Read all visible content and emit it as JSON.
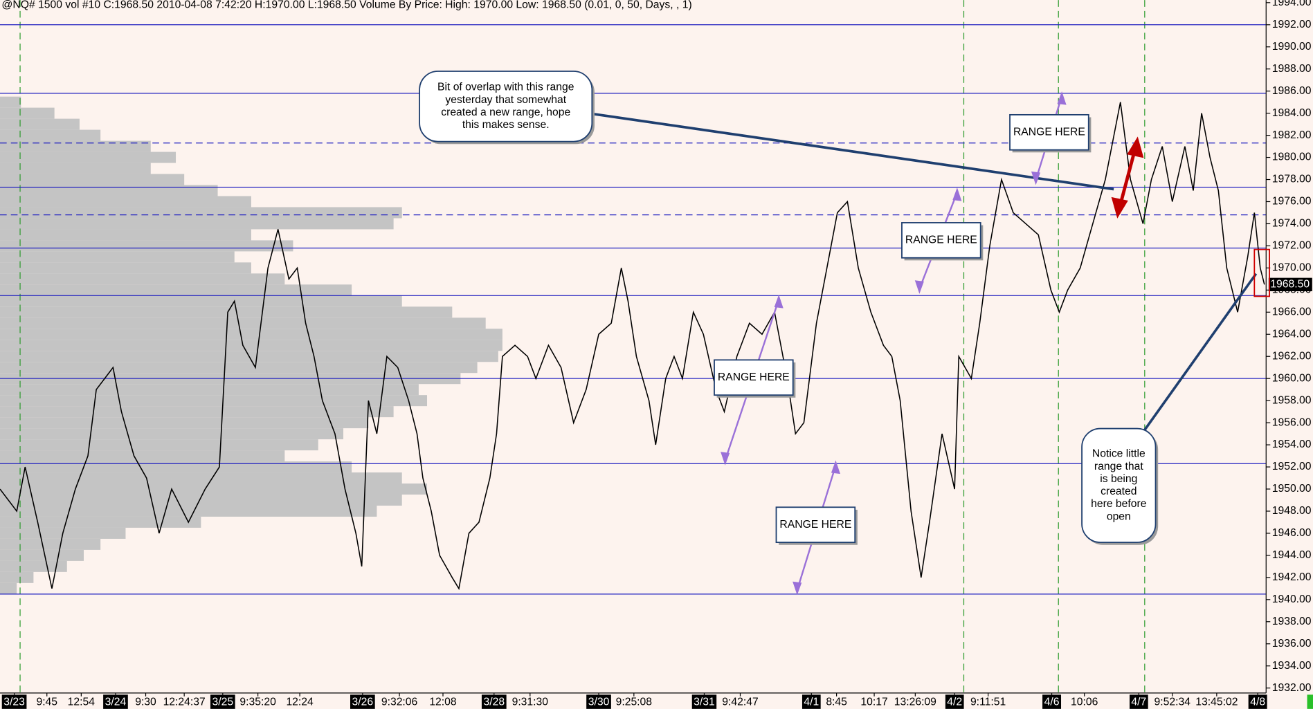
{
  "header": "@NQ#  1500 vol  #10  C:1968.50  2010-04-08  7:42:20  H:1970.00  L:1968.50  Volume By Price:  High: 1970.00  Low: 1968.50   (0.01, 0, 50, Days, , 1)",
  "chart_data": {
    "type": "line",
    "color": "#000000",
    "x": [
      0,
      20,
      30,
      45,
      62,
      75,
      90,
      105,
      115,
      125,
      135,
      145,
      160,
      175,
      190,
      205,
      225,
      245,
      262,
      272,
      280,
      290,
      305,
      320,
      332,
      345,
      355,
      365,
      375,
      385,
      400,
      412,
      425,
      432,
      440,
      450,
      462,
      475,
      488,
      498,
      505,
      515,
      525,
      540,
      548,
      560,
      572,
      585,
      593,
      600,
      615,
      630,
      640,
      655,
      670,
      685,
      700,
      715,
      730,
      742,
      750,
      760,
      775,
      783,
      795,
      805,
      815,
      828,
      840,
      855,
      865,
      880,
      895,
      910,
      925,
      940,
      950,
      960,
      975,
      990,
      1000,
      1012,
      1025,
      1040,
      1055,
      1065,
      1075,
      1088,
      1100,
      1110,
      1125,
      1140,
      1145,
      1160,
      1170,
      1182,
      1196,
      1210,
      1225,
      1240,
      1255,
      1265,
      1275,
      1290,
      1305,
      1320,
      1338,
      1350,
      1365,
      1375,
      1388,
      1400,
      1415,
      1425,
      1435,
      1445,
      1455,
      1465,
      1478,
      1490,
      1498,
      1505,
      1510
    ],
    "values": [
      1950,
      1948,
      1952,
      1947,
      1941,
      1946,
      1950,
      1953,
      1959,
      1960,
      1961,
      1957,
      1953,
      1951,
      1946,
      1950,
      1947,
      1950,
      1952,
      1966,
      1967,
      1963,
      1961,
      1970,
      1973.5,
      1969,
      1970,
      1965,
      1962,
      1958,
      1955,
      1950,
      1946,
      1943,
      1958,
      1955,
      1962,
      1961,
      1958,
      1955,
      1951,
      1948,
      1944,
      1942,
      1941,
      1946,
      1947,
      1951,
      1955,
      1962,
      1963,
      1962,
      1960,
      1963,
      1961,
      1956,
      1959,
      1964,
      1965,
      1970,
      1967,
      1962,
      1958,
      1954,
      1960,
      1962,
      1960,
      1966,
      1964,
      1959,
      1957,
      1962,
      1965,
      1964,
      1966,
      1960,
      1955,
      1956,
      1965,
      1971,
      1975,
      1976,
      1970,
      1966,
      1963,
      1962,
      1958,
      1948,
      1942,
      1947,
      1955,
      1950,
      1962,
      1960,
      1965,
      1972,
      1978,
      1975,
      1974,
      1973,
      1968,
      1966,
      1968,
      1970,
      1974,
      1978,
      1985,
      1978,
      1974,
      1978,
      1981,
      1976,
      1981,
      1977,
      1984,
      1980,
      1977,
      1970,
      1966,
      1971,
      1975,
      1970,
      1968.5
    ],
    "xlim": [
      0,
      1512
    ],
    "ylim": [
      1931.55,
      1994.23
    ],
    "xticks": [
      {
        "value": 17,
        "label": "3/23"
      },
      {
        "value": 56,
        "label": "9:45"
      },
      {
        "value": 97,
        "label": "12:54"
      },
      {
        "value": 138,
        "label": "3/24"
      },
      {
        "value": 174,
        "label": "9:30"
      },
      {
        "value": 220,
        "label": "12:24:37"
      },
      {
        "value": 266,
        "label": "3/25"
      },
      {
        "value": 308,
        "label": "9:35:20"
      },
      {
        "value": 358,
        "label": "12:24"
      },
      {
        "value": 433,
        "label": "3/26"
      },
      {
        "value": 477,
        "label": "9:32:06"
      },
      {
        "value": 529,
        "label": "12:08"
      },
      {
        "value": 590,
        "label": "3/28"
      },
      {
        "value": 633,
        "label": "9:31:30"
      },
      {
        "value": 715,
        "label": "3/30"
      },
      {
        "value": 757,
        "label": "9:25:08"
      },
      {
        "value": 841,
        "label": "3/31"
      },
      {
        "value": 884,
        "label": "9:42:47"
      },
      {
        "value": 969,
        "label": "4/1"
      },
      {
        "value": 999,
        "label": "8:45"
      },
      {
        "value": 1044,
        "label": "10:17"
      },
      {
        "value": 1093,
        "label": "13:26:09"
      },
      {
        "value": 1140,
        "label": "4/2"
      },
      {
        "value": 1180,
        "label": "9:11:51"
      },
      {
        "value": 1256,
        "label": "4/6"
      },
      {
        "value": 1295,
        "label": "10:06"
      },
      {
        "value": 1360,
        "label": "4/7"
      },
      {
        "value": 1400,
        "label": "9:52:34"
      },
      {
        "value": 1453,
        "label": "13:45:02"
      },
      {
        "value": 1502,
        "label": "4/8"
      }
    ],
    "yticks": [
      {
        "value": 1932,
        "label": "1932.00"
      },
      {
        "value": 1934,
        "label": "1934.00"
      },
      {
        "value": 1936,
        "label": "1936.00"
      },
      {
        "value": 1938,
        "label": "1938.00"
      },
      {
        "value": 1940,
        "label": "1940.00"
      },
      {
        "value": 1942,
        "label": "1942.00"
      },
      {
        "value": 1944,
        "label": "1944.00"
      },
      {
        "value": 1946,
        "label": "1946.00"
      },
      {
        "value": 1948,
        "label": "1948.00"
      },
      {
        "value": 1950,
        "label": "1950.00"
      },
      {
        "value": 1952,
        "label": "1952.00"
      },
      {
        "value": 1954,
        "label": "1954.00"
      },
      {
        "value": 1956,
        "label": "1956.00"
      },
      {
        "value": 1958,
        "label": "1958.00"
      },
      {
        "value": 1960,
        "label": "1960.00"
      },
      {
        "value": 1962,
        "label": "1962.00"
      },
      {
        "value": 1964,
        "label": "1964.00"
      },
      {
        "value": 1966,
        "label": "1966.00"
      },
      {
        "value": 1968,
        "label": "1968.00"
      },
      {
        "value": 1970,
        "label": "1970.00"
      },
      {
        "value": 1972,
        "label": "1972.00"
      },
      {
        "value": 1974,
        "label": "1974.00"
      },
      {
        "value": 1976,
        "label": "1976.00"
      },
      {
        "value": 1978,
        "label": "1978.00"
      },
      {
        "value": 1980,
        "label": "1980.00"
      },
      {
        "value": 1982,
        "label": "1982.00"
      },
      {
        "value": 1984,
        "label": "1984.00"
      },
      {
        "value": 1986,
        "label": "1986.00"
      },
      {
        "value": 1988,
        "label": "1988.00"
      },
      {
        "value": 1990,
        "label": "1990.00"
      },
      {
        "value": 1992,
        "label": "1992.00"
      },
      {
        "value": 1994,
        "label": "1994.00"
      }
    ],
    "last_price": {
      "value": 1968.5,
      "label": "1968.50"
    },
    "levels": [
      {
        "value": 1992.0,
        "dashed": false
      },
      {
        "value": 1985.8,
        "dashed": false
      },
      {
        "value": 1981.3,
        "dashed": true
      },
      {
        "value": 1977.3,
        "dashed": false
      },
      {
        "value": 1974.8,
        "dashed": true
      },
      {
        "value": 1971.8,
        "dashed": false
      },
      {
        "value": 1967.5,
        "dashed": false
      },
      {
        "value": 1960.0,
        "dashed": false
      },
      {
        "value": 1952.3,
        "dashed": false
      },
      {
        "value": 1940.5,
        "dashed": false
      }
    ],
    "level_color": "#2020c0",
    "sessions": [
      24,
      1151,
      1264,
      1367
    ],
    "session_color": "#2a9a2a",
    "volume_profile": {
      "color": "#c4c4c4",
      "prices": [
        1985,
        1984,
        1983,
        1982,
        1981,
        1980,
        1979,
        1978,
        1977,
        1976,
        1975,
        1974,
        1973,
        1972,
        1971,
        1970,
        1969,
        1968,
        1967,
        1966,
        1965,
        1964,
        1963,
        1962,
        1961,
        1960,
        1959,
        1958,
        1957,
        1956,
        1955,
        1954,
        1953,
        1952,
        1951,
        1950,
        1949,
        1948,
        1947,
        1946,
        1945,
        1944,
        1943,
        1942,
        1941
      ],
      "volumes": [
        25,
        65,
        95,
        120,
        180,
        210,
        180,
        220,
        260,
        300,
        480,
        470,
        300,
        350,
        280,
        300,
        340,
        420,
        480,
        540,
        580,
        600,
        600,
        595,
        570,
        550,
        500,
        510,
        470,
        440,
        410,
        380,
        340,
        420,
        480,
        510,
        480,
        450,
        240,
        150,
        120,
        100,
        80,
        40,
        20
      ]
    },
    "annotations": [
      {
        "lines": [
          "Bit of overlap with this range",
          "yesterday that somewhat",
          "created a new range, hope",
          "this makes sense."
        ]
      },
      {
        "lines": [
          "RANGE HERE"
        ]
      },
      {
        "lines": [
          "RANGE HERE"
        ]
      },
      {
        "lines": [
          "RANGE HERE"
        ]
      },
      {
        "lines": [
          "RANGE HERE"
        ]
      },
      {
        "lines": [
          "Notice little",
          "range that",
          "is being",
          "created",
          "here before",
          "open"
        ]
      }
    ]
  }
}
